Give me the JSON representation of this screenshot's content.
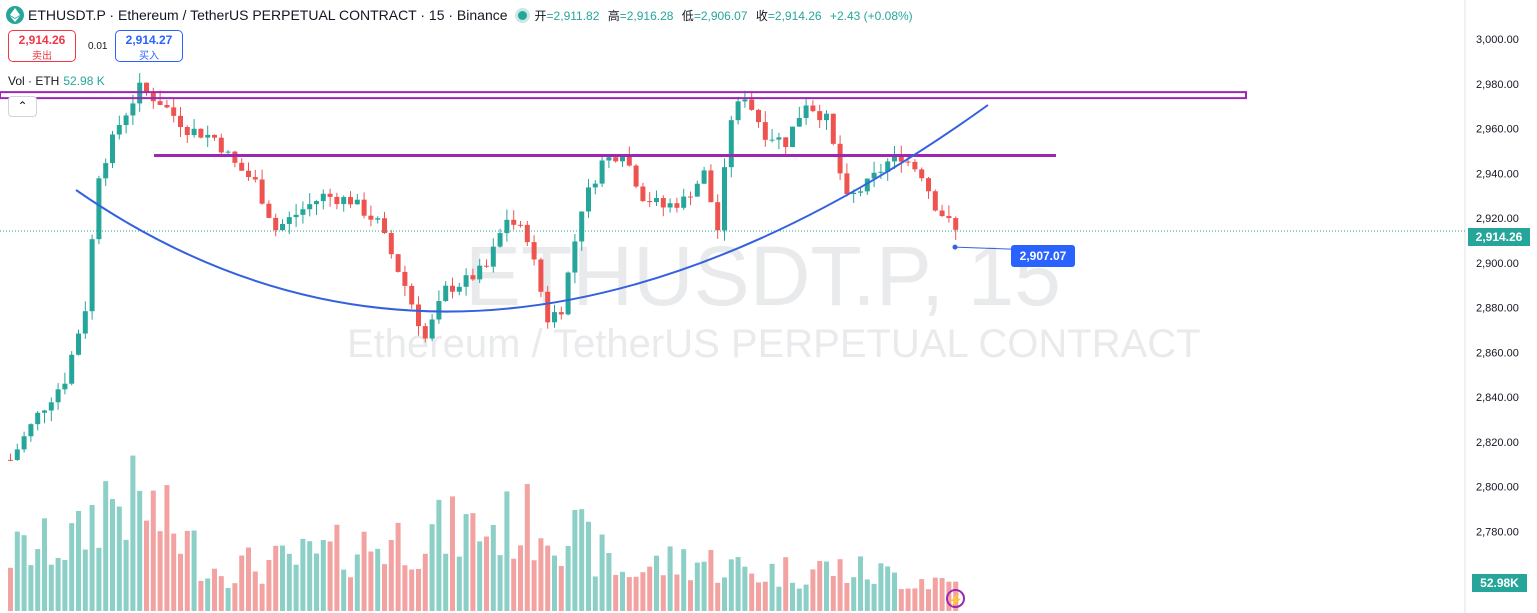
{
  "header": {
    "title": "ETHUSDT.P · Ethereum / TetherUS PERPETUAL CONTRACT · 15 · Binance",
    "open_label": "开",
    "open": "=2,911.82",
    "high_label": "高",
    "high": "=2,916.28",
    "low_label": "低",
    "low": "=2,906.07",
    "close_label": "收",
    "close": "=2,914.26",
    "change": "+2.43 (+0.08%)"
  },
  "trade": {
    "sell_price": "2,914.26",
    "sell_label": "卖出",
    "spread": "0.01",
    "buy_price": "2,914.27",
    "buy_label": "买入"
  },
  "volume": {
    "label": "Vol · ETH",
    "value": "52.98 K",
    "badge": "52.98K"
  },
  "collapse_icon": "chevron-up-icon",
  "watermark": {
    "line1": "ETHUSDT.P, 15",
    "line2": "Ethereum / TetherUS PERPETUAL CONTRACT"
  },
  "price_badge": "2,914.26",
  "annotation": {
    "label": "2,907.07",
    "price": 2907.07
  },
  "colors": {
    "up": "#26a69a",
    "down": "#ef5350",
    "vol_up": "#8ccfc6",
    "vol_down": "#f2a3a1",
    "curve": "#3461e0",
    "levels": "#9c27b0"
  },
  "chart_data": {
    "type": "candlestick",
    "ylim": [
      2765,
      3005
    ],
    "y_ticks": [
      "3,000.00",
      "2,980.00",
      "2,960.00",
      "2,940.00",
      "2,920.00",
      "2,900.00",
      "2,880.00",
      "2,860.00",
      "2,840.00",
      "2,820.00",
      "2,800.00",
      "2,780.00"
    ],
    "current_price": 2914.26,
    "horizontal_levels": [
      2975,
      2948
    ],
    "bar_count": 140,
    "anchors": [
      [
        0,
        2812
      ],
      [
        4,
        2832
      ],
      [
        8,
        2848
      ],
      [
        11,
        2880
      ],
      [
        13,
        2940
      ],
      [
        16,
        2962
      ],
      [
        19,
        2978
      ],
      [
        22,
        2972
      ],
      [
        26,
        2960
      ],
      [
        30,
        2956
      ],
      [
        33,
        2944
      ],
      [
        36,
        2936
      ],
      [
        39,
        2915
      ],
      [
        43,
        2924
      ],
      [
        46,
        2930
      ],
      [
        50,
        2928
      ],
      [
        54,
        2918
      ],
      [
        58,
        2890
      ],
      [
        61,
        2866
      ],
      [
        64,
        2888
      ],
      [
        67,
        2892
      ],
      [
        70,
        2898
      ],
      [
        73,
        2920
      ],
      [
        76,
        2912
      ],
      [
        79,
        2875
      ],
      [
        81,
        2880
      ],
      [
        84,
        2925
      ],
      [
        87,
        2945
      ],
      [
        90,
        2950
      ],
      [
        93,
        2930
      ],
      [
        96,
        2925
      ],
      [
        99,
        2928
      ],
      [
        102,
        2940
      ],
      [
        104,
        2915
      ],
      [
        106,
        2965
      ],
      [
        108,
        2975
      ],
      [
        111,
        2958
      ],
      [
        114,
        2954
      ],
      [
        117,
        2972
      ],
      [
        120,
        2964
      ],
      [
        123,
        2928
      ],
      [
        126,
        2935
      ],
      [
        129,
        2945
      ],
      [
        131,
        2948
      ],
      [
        134,
        2940
      ],
      [
        136,
        2926
      ],
      [
        139,
        2914
      ]
    ],
    "volume_anchors": [
      [
        0,
        60
      ],
      [
        10,
        75
      ],
      [
        14,
        120
      ],
      [
        20,
        110
      ],
      [
        30,
        45
      ],
      [
        40,
        50
      ],
      [
        60,
        80
      ],
      [
        80,
        95
      ],
      [
        90,
        40
      ],
      [
        100,
        55
      ],
      [
        110,
        40
      ],
      [
        120,
        45
      ],
      [
        139,
        30
      ]
    ]
  }
}
